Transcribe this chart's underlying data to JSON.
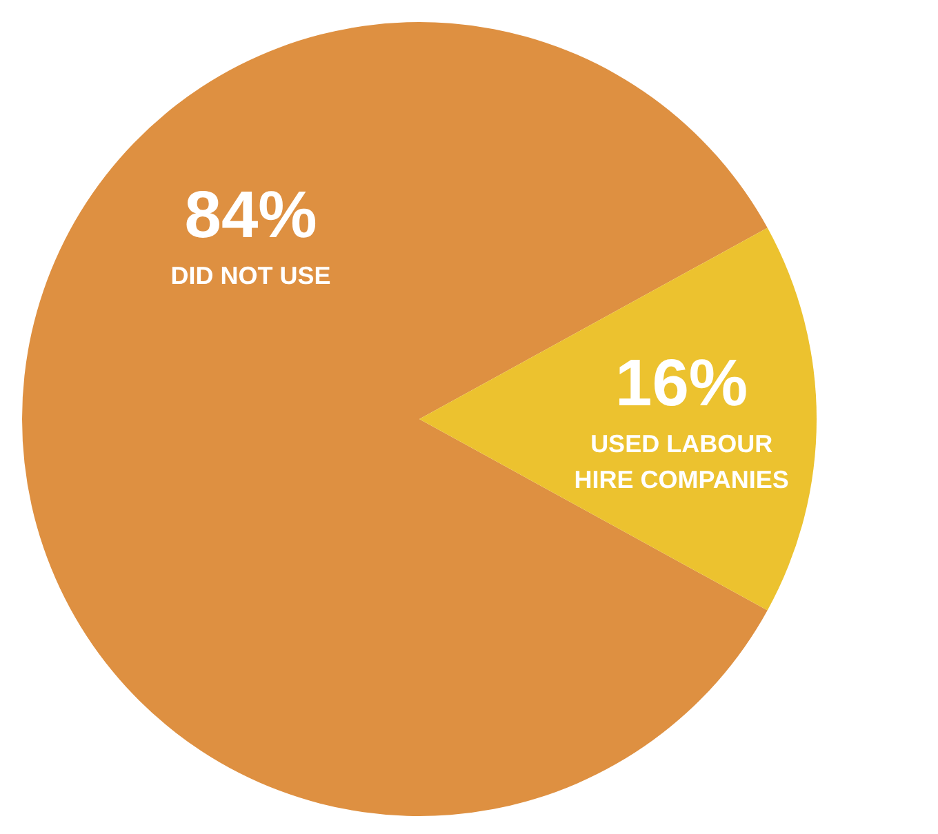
{
  "chart_data": {
    "type": "pie",
    "categories": [
      "DID NOT USE",
      "USED LABOUR HIRE COMPANIES"
    ],
    "values": [
      84,
      16
    ],
    "value_labels": [
      "84%",
      "16%"
    ],
    "colors": [
      "#de9041",
      "#ecc22f"
    ],
    "legend": false
  }
}
